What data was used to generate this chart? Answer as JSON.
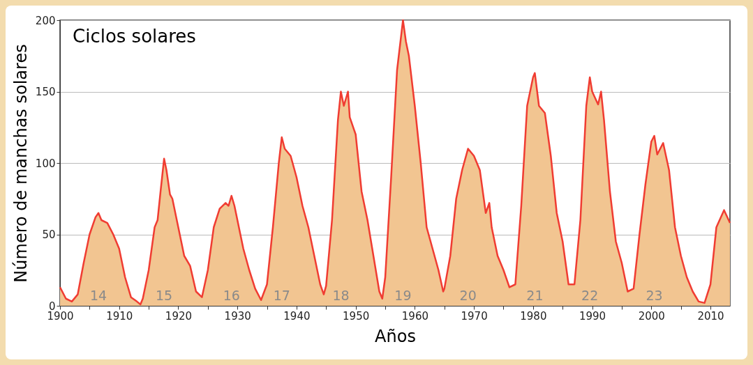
{
  "chart_data": {
    "type": "area",
    "title": "Ciclos solares",
    "xlabel": "Años",
    "ylabel": "Número de manchas solares",
    "x": [
      1900,
      1901,
      1902,
      1903,
      1904,
      1905,
      1906,
      1906.5,
      1907,
      1908,
      1909,
      1910,
      1911,
      1912,
      1913,
      1913.6,
      1914,
      1915,
      1916,
      1916.5,
      1917,
      1917.6,
      1918,
      1918.6,
      1919,
      1920,
      1921,
      1922,
      1923,
      1924,
      1925,
      1926,
      1927,
      1928,
      1928.5,
      1929,
      1929.5,
      1930,
      1931,
      1932,
      1933,
      1934,
      1935,
      1936,
      1937,
      1937.5,
      1938,
      1939,
      1940,
      1941,
      1942,
      1943,
      1944,
      1944.6,
      1945,
      1946,
      1947,
      1947.5,
      1948,
      1948.7,
      1949,
      1950,
      1951,
      1952,
      1953,
      1954,
      1954.5,
      1955,
      1956,
      1957,
      1958,
      1958.5,
      1959,
      1960,
      1961,
      1962,
      1963,
      1964,
      1964.8,
      1965,
      1966,
      1967,
      1968,
      1969,
      1970,
      1971,
      1972,
      1972.6,
      1973,
      1974,
      1975,
      1976,
      1977,
      1978,
      1979,
      1980,
      1980.3,
      1981,
      1982,
      1983,
      1984,
      1985,
      1986,
      1987,
      1988,
      1989,
      1989.6,
      1990,
      1991,
      1991.5,
      1992,
      1993,
      1994,
      1995,
      1996,
      1997,
      1998,
      1999,
      2000,
      2000.5,
      2001,
      2002,
      2003,
      2004,
      2005,
      2006,
      2007,
      2008,
      2009,
      2010,
      2011,
      2012.3,
      2013.3
    ],
    "series": [
      {
        "color": "#f03c32",
        "values": [
          13,
          5,
          3,
          8,
          30,
          50,
          62,
          65,
          60,
          58,
          50,
          40,
          20,
          6,
          3,
          1,
          5,
          25,
          55,
          60,
          80,
          103,
          95,
          78,
          75,
          55,
          35,
          28,
          10,
          6,
          25,
          55,
          68,
          72,
          70,
          77,
          70,
          60,
          40,
          25,
          12,
          4,
          15,
          55,
          100,
          118,
          110,
          105,
          90,
          70,
          55,
          35,
          15,
          8,
          14,
          60,
          130,
          150,
          140,
          150,
          132,
          120,
          80,
          60,
          35,
          10,
          5,
          20,
          90,
          165,
          200,
          185,
          175,
          140,
          100,
          55,
          40,
          25,
          10,
          12,
          35,
          75,
          95,
          110,
          105,
          95,
          65,
          72,
          55,
          35,
          25,
          13,
          15,
          70,
          140,
          160,
          163,
          140,
          135,
          105,
          65,
          45,
          15,
          15,
          60,
          140,
          160,
          150,
          141,
          150,
          130,
          80,
          45,
          30,
          10,
          12,
          50,
          85,
          115,
          119,
          106,
          114,
          95,
          55,
          35,
          20,
          10,
          3,
          2,
          15,
          55,
          67,
          58
        ]
      }
    ],
    "xlim": [
      1900,
      2013.3
    ],
    "xticks": [
      1900,
      {
        "value": 1905,
        "label": null
      },
      1910,
      {
        "value": 1915,
        "label": null
      },
      1920,
      {
        "value": 1925,
        "label": null
      },
      1930,
      {
        "value": 1935,
        "label": null
      },
      1940,
      {
        "value": 1945,
        "label": null
      },
      1950,
      {
        "value": 1955,
        "label": null
      },
      1960,
      {
        "value": 1965,
        "label": null
      },
      1970,
      {
        "value": 1975,
        "label": null
      },
      1980,
      {
        "value": 1985,
        "label": null
      },
      1990,
      {
        "value": 1995,
        "label": null
      },
      2000,
      {
        "value": 2005,
        "label": null
      },
      2010
    ],
    "ylim": [
      0,
      200
    ],
    "yticks": [
      0,
      50,
      100,
      150,
      200
    ],
    "grid": "y",
    "annotations": [
      "14",
      "15",
      "16",
      "17",
      "18",
      "19",
      "20",
      "21",
      "22",
      "23"
    ]
  }
}
